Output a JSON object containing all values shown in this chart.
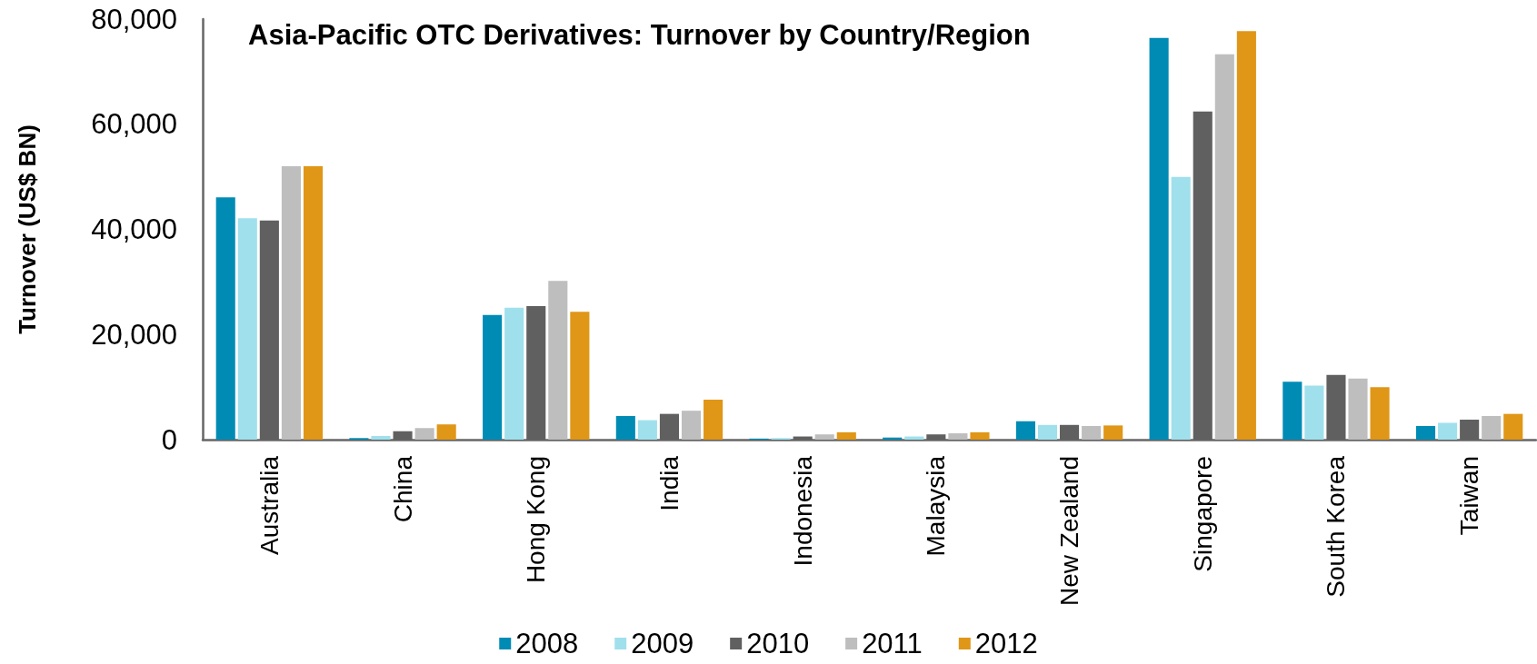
{
  "chart_data": {
    "type": "bar",
    "title": "Asia-Pacific OTC Derivatives: Turnover by Country/Region",
    "ylabel": "Turnover (US$ BN)",
    "categories": [
      "Australia",
      "China",
      "Hong Kong",
      "India",
      "Indonesia",
      "Malaysia",
      "New Zealand",
      "Singapore",
      "South Korea",
      "Taiwan"
    ],
    "series": [
      {
        "name": "2008",
        "color": "#008bb5",
        "values": [
          46100,
          300,
          23700,
          4500,
          200,
          400,
          3500,
          76400,
          11000,
          2600
        ]
      },
      {
        "name": "2009",
        "color": "#a0e0ec",
        "values": [
          42100,
          700,
          25100,
          3700,
          300,
          600,
          2800,
          50000,
          10300,
          3200
        ]
      },
      {
        "name": "2010",
        "color": "#606060",
        "values": [
          41700,
          1600,
          25400,
          4900,
          600,
          1000,
          2800,
          62400,
          12300,
          3800
        ]
      },
      {
        "name": "2011",
        "color": "#bebebe",
        "values": [
          52000,
          2200,
          30200,
          5500,
          1000,
          1200,
          2600,
          73300,
          11600,
          4500
        ]
      },
      {
        "name": "2012",
        "color": "#e09617",
        "values": [
          52000,
          2900,
          24300,
          7600,
          1400,
          1400,
          2700,
          77700,
          10000,
          4900
        ]
      }
    ],
    "ylim": [
      0,
      80000
    ],
    "yticks": [
      {
        "value": 0,
        "label": "0"
      },
      {
        "value": 20000,
        "label": "20,000"
      },
      {
        "value": 40000,
        "label": "40,000"
      },
      {
        "value": 60000,
        "label": "60,000"
      },
      {
        "value": 80000,
        "label": "80,000"
      }
    ],
    "legend": "bottom"
  }
}
